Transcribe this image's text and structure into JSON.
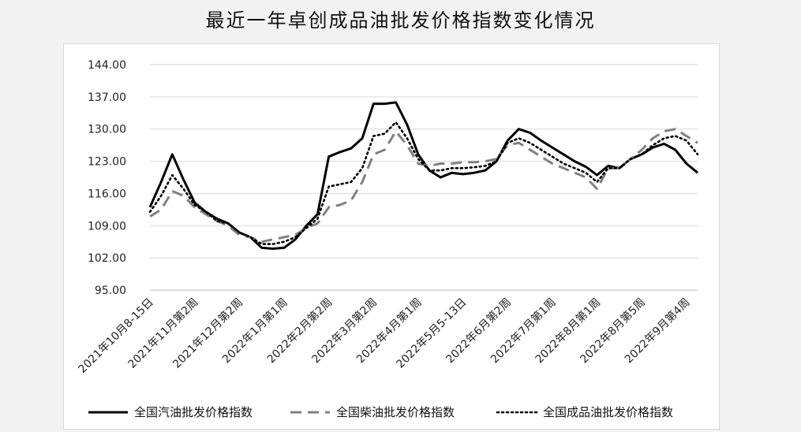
{
  "chart_data": {
    "type": "line",
    "title": "最近一年卓创成品油批发价格指数变化情况",
    "ylim": [
      95,
      144
    ],
    "yticks": [
      "95.00",
      "102.00",
      "109.00",
      "116.00",
      "123.00",
      "130.00",
      "137.00",
      "144.00"
    ],
    "yticks_values": [
      95,
      102,
      109,
      116,
      123,
      130,
      137,
      144
    ],
    "x_labels": [
      "2021年10月8-15日",
      "2021年11月第2周",
      "2021年12月第2周",
      "2022年1月第1周",
      "2022年2月第2周",
      "2022年3月第2周",
      "2022年4月第1周",
      "2022年5月5-13日",
      "2022年6月第2周",
      "2022年7月第1周",
      "2022年8月第1周",
      "2022年8月第5周",
      "2022年9月第4周"
    ],
    "x_label_index": [
      0,
      4,
      8,
      12,
      16,
      20,
      24,
      28,
      32,
      36,
      40,
      44,
      48
    ],
    "grid": true,
    "legend_position": "bottom",
    "series": [
      {
        "name": "全国汽油批发价格指数",
        "color": "#000000",
        "style": "solid",
        "values": [
          113.0,
          118.5,
          124.5,
          119.0,
          114.0,
          112.0,
          110.5,
          109.5,
          107.5,
          106.5,
          104.2,
          104.0,
          104.2,
          106.0,
          109.0,
          111.5,
          124.0,
          125.0,
          125.8,
          128.0,
          135.5,
          135.5,
          135.8,
          131.0,
          124.5,
          121.0,
          119.5,
          120.5,
          120.2,
          120.5,
          121.0,
          123.0,
          127.5,
          130.0,
          129.2,
          127.5,
          126.0,
          124.5,
          123.0,
          121.8,
          120.0,
          122.0,
          121.5,
          123.5,
          124.5,
          126.0,
          126.8,
          125.5,
          122.5,
          120.5
        ]
      },
      {
        "name": "全国柴油批发价格指数",
        "color": "#808080",
        "style": "dashed",
        "values": [
          111.0,
          112.5,
          116.5,
          115.5,
          113.0,
          111.5,
          110.0,
          109.0,
          107.0,
          106.5,
          105.5,
          106.0,
          106.5,
          107.0,
          108.5,
          109.5,
          113.0,
          113.5,
          114.5,
          118.5,
          124.5,
          125.5,
          129.5,
          126.5,
          122.5,
          122.0,
          122.5,
          122.5,
          122.8,
          122.8,
          123.0,
          123.5,
          126.5,
          127.0,
          125.5,
          124.0,
          122.5,
          121.5,
          120.5,
          119.5,
          117.0,
          121.5,
          121.5,
          123.5,
          125.5,
          128.0,
          129.5,
          130.0,
          128.5,
          127.0
        ]
      },
      {
        "name": "全国成品油批发价格指数",
        "color": "#000000",
        "style": "dotted",
        "values": [
          112.0,
          115.5,
          120.0,
          117.0,
          113.5,
          112.0,
          110.0,
          109.5,
          107.5,
          106.5,
          105.0,
          105.0,
          105.5,
          106.5,
          108.5,
          110.5,
          117.5,
          118.0,
          118.5,
          121.5,
          128.5,
          129.0,
          131.5,
          128.0,
          123.5,
          121.0,
          121.0,
          121.5,
          121.5,
          121.7,
          122.0,
          123.0,
          127.0,
          128.0,
          127.0,
          125.5,
          124.0,
          122.5,
          121.5,
          120.5,
          118.5,
          121.5,
          121.5,
          123.5,
          124.5,
          126.5,
          128.0,
          128.5,
          127.5,
          124.5
        ]
      }
    ]
  }
}
